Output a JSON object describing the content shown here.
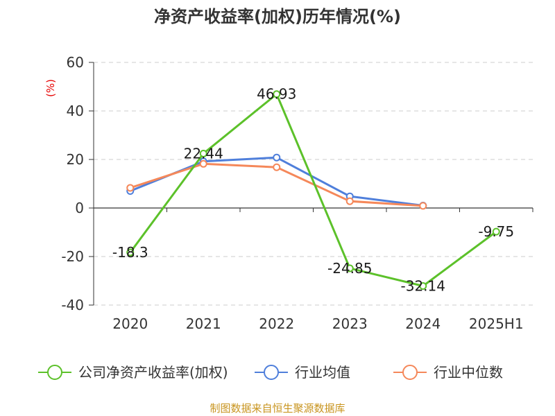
{
  "chart_data": {
    "type": "line",
    "title": "净资产收益率(加权)历年情况(%)",
    "ylabel": "(%)",
    "categories": [
      "2020",
      "2021",
      "2022",
      "2023",
      "2024",
      "2025H1"
    ],
    "ylim": [
      -40,
      60
    ],
    "yticks": [
      -40,
      -20,
      0,
      20,
      40,
      60
    ],
    "grid": true,
    "legend_position": "bottom",
    "series": [
      {
        "name": "公司净资产收益率(加权)",
        "color": "#5cc12a",
        "values": [
          -18.3,
          22.44,
          46.93,
          -24.85,
          -32.14,
          -9.75
        ],
        "labels": [
          "-18.3",
          "22.44",
          "46.93",
          "-24.85",
          "-32.14",
          "-9.75"
        ]
      },
      {
        "name": "行业均值",
        "color": "#4f7fdb",
        "values": [
          7.0,
          19.2,
          20.8,
          4.8,
          1.0,
          null
        ]
      },
      {
        "name": "行业中位数",
        "color": "#f5885a",
        "values": [
          8.3,
          18.2,
          16.8,
          2.8,
          0.9,
          null
        ]
      }
    ]
  },
  "source": "制图数据来自恒生聚源数据库"
}
